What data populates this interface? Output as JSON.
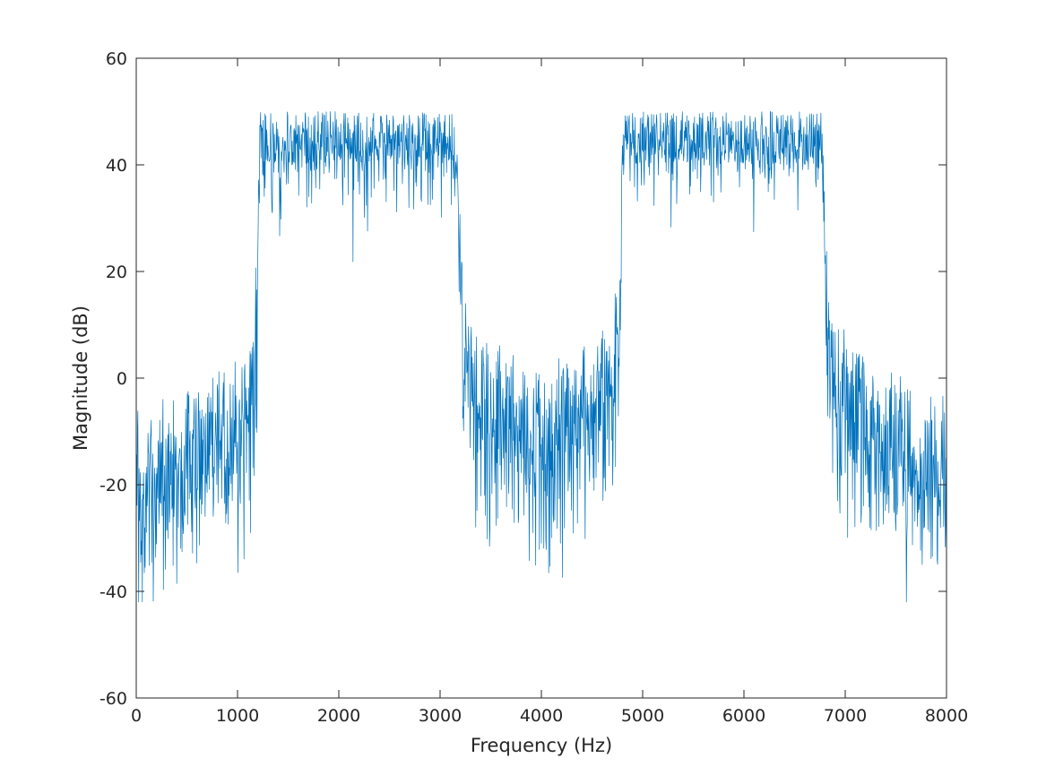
{
  "chart_data": {
    "type": "line",
    "title": "",
    "xlabel": "Frequency (Hz)",
    "ylabel": "Magnitude (dB)",
    "xlim": [
      0,
      8000
    ],
    "ylim": [
      -60,
      60
    ],
    "xticks": [
      0,
      1000,
      2000,
      3000,
      4000,
      5000,
      6000,
      7000,
      8000
    ],
    "xtick_labels": [
      "0",
      "1000",
      "2000",
      "3000",
      "4000",
      "5000",
      "6000",
      "7000",
      "8000"
    ],
    "yticks": [
      -60,
      -40,
      -20,
      0,
      20,
      40,
      60
    ],
    "ytick_labels": [
      "-60",
      "-40",
      "-20",
      "0",
      "20",
      "40",
      "60"
    ],
    "grid": false,
    "legend": "none",
    "line_color": "#0072BD",
    "sample_spacing_hz": 4,
    "floor_db": -42,
    "series": [
      {
        "envelope_x": [
          0,
          300,
          600,
          900,
          1100,
          1150,
          1180,
          1200,
          1220,
          2000,
          3150,
          3200,
          3230,
          3300,
          3500,
          4000,
          4500,
          4700,
          4780,
          4800,
          4820,
          6000,
          6780,
          6800,
          6830,
          6900,
          7300,
          7700,
          8000
        ],
        "envelope_y": [
          -14,
          -13,
          -10,
          -6,
          -1,
          3,
          12,
          28,
          45,
          45,
          45,
          30,
          14,
          6,
          -1,
          -8,
          -1,
          6,
          22,
          45,
          45,
          45,
          45,
          30,
          12,
          4,
          -6,
          -10,
          -12
        ]
      }
    ]
  }
}
